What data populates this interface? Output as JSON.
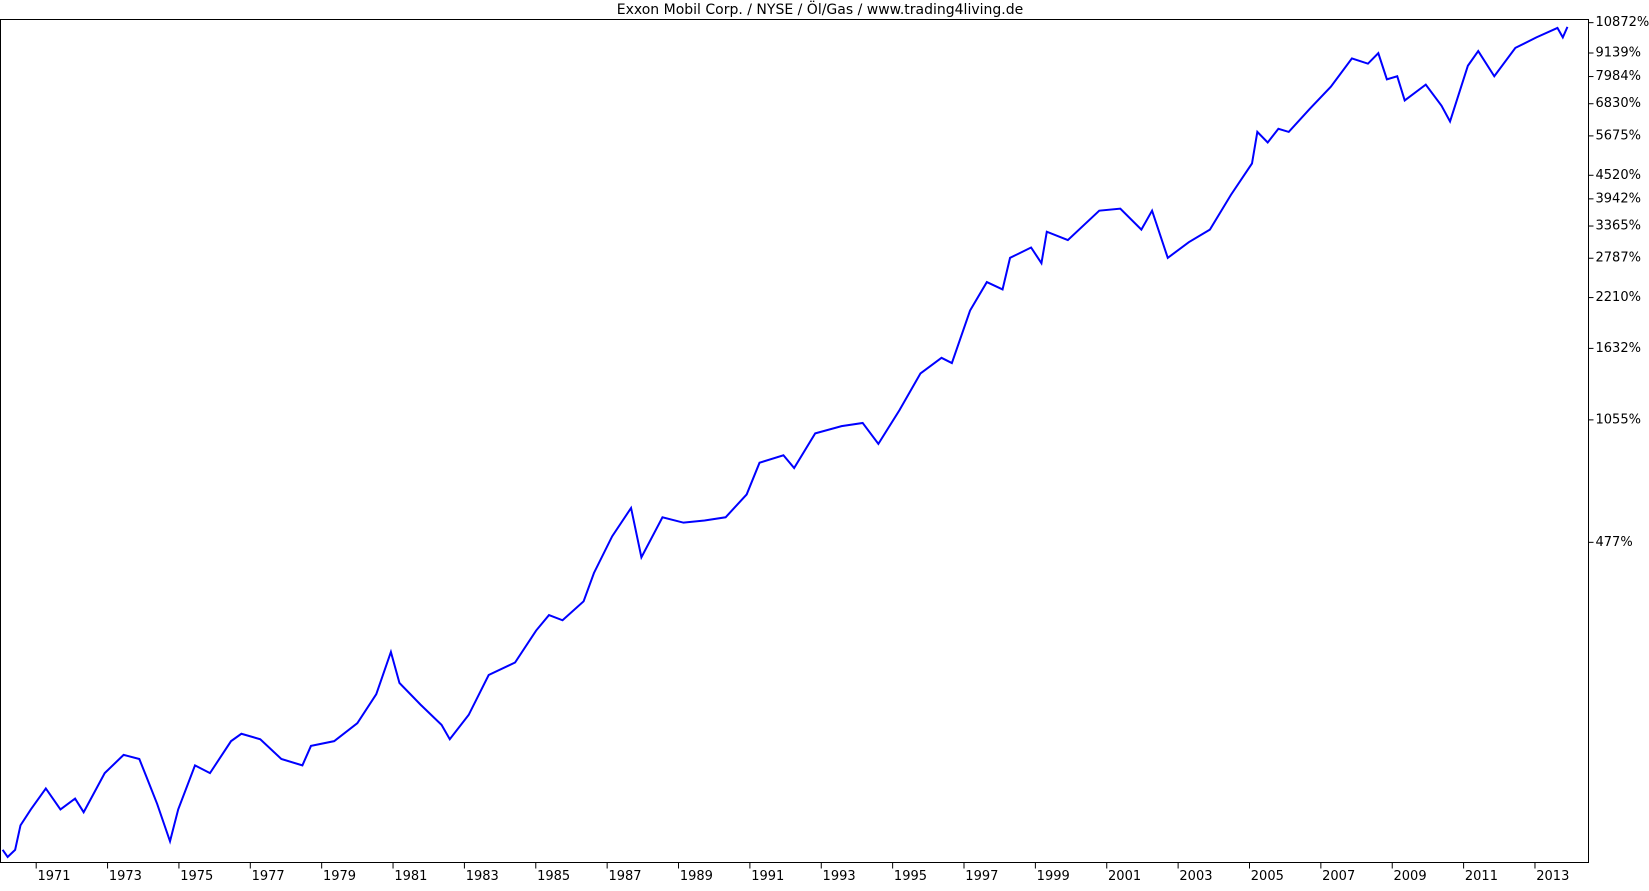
{
  "chart_data": {
    "type": "line",
    "title": "Exxon Mobil Corp. / NYSE / Öl/Gas / www.trading4living.de",
    "log_scale": true,
    "grid": false,
    "color": "#0000ff",
    "xlim": [
      1970,
      2014.5
    ],
    "xticks": [
      1971,
      1973,
      1975,
      1977,
      1979,
      1981,
      1983,
      1985,
      1987,
      1989,
      1991,
      1993,
      1995,
      1997,
      1999,
      2001,
      2003,
      2005,
      2007,
      2009,
      2011,
      2013
    ],
    "ylim": [
      -6,
      11070
    ],
    "yticks": [
      {
        "value": 477,
        "label": "477%"
      },
      {
        "value": 1055,
        "label": "1055%"
      },
      {
        "value": 1632,
        "label": "1632%"
      },
      {
        "value": 2210,
        "label": "2210%"
      },
      {
        "value": 2787,
        "label": "2787%"
      },
      {
        "value": 3365,
        "label": "3365%"
      },
      {
        "value": 3942,
        "label": "3942%"
      },
      {
        "value": 4520,
        "label": "4520%"
      },
      {
        "value": 5675,
        "label": "5675%"
      },
      {
        "value": 6830,
        "label": "6830%"
      },
      {
        "value": 7984,
        "label": "7984%"
      },
      {
        "value": 9139,
        "label": "9139%"
      },
      {
        "value": 10872,
        "label": "10872%"
      }
    ],
    "x": [
      1970.06,
      1970.2,
      1970.41,
      1970.56,
      1970.85,
      1971.27,
      1971.68,
      1972.09,
      1972.33,
      1972.92,
      1973.45,
      1973.89,
      1974.1,
      1974.39,
      1974.75,
      1974.98,
      1975.45,
      1975.87,
      1976.46,
      1976.75,
      1977.28,
      1977.87,
      1978.46,
      1978.7,
      1979.35,
      1980.0,
      1980.53,
      1980.94,
      1981.18,
      1981.77,
      1982.36,
      1982.59,
      1983.12,
      1983.68,
      1984.42,
      1985.01,
      1985.37,
      1985.75,
      1986.34,
      1986.63,
      1987.14,
      1987.67,
      1987.96,
      1988.55,
      1989.14,
      1989.73,
      1990.32,
      1990.91,
      1991.27,
      1991.94,
      1992.24,
      1992.83,
      1993.57,
      1994.16,
      1994.6,
      1995.19,
      1995.78,
      1996.37,
      1996.66,
      1997.17,
      1997.64,
      1998.08,
      1998.29,
      1998.88,
      1999.17,
      1999.32,
      1999.91,
      2000.79,
      2001.38,
      2001.97,
      2002.27,
      2002.71,
      2003.3,
      2003.89,
      2004.48,
      2005.07,
      2005.22,
      2005.51,
      2005.81,
      2006.1,
      2006.69,
      2007.28,
      2007.87,
      2008.32,
      2008.61,
      2008.85,
      2009.14,
      2009.35,
      2009.94,
      2010.38,
      2010.62,
      2011.12,
      2011.41,
      2011.86,
      2012.45,
      2013.04,
      2013.63,
      2013.78,
      2013.91
    ],
    "values": [
      1,
      -3,
      1,
      16,
      27,
      43,
      27,
      35,
      25,
      56,
      73,
      69,
      52,
      31,
      6,
      27,
      63,
      56,
      87,
      95,
      89,
      69,
      63,
      82,
      87,
      107,
      144,
      210,
      160,
      130,
      105,
      89,
      117,
      172,
      192,
      250,
      282,
      271,
      313,
      385,
      497,
      601,
      430,
      565,
      545,
      553,
      565,
      657,
      806,
      845,
      779,
      970,
      1015,
      1035,
      908,
      1120,
      1403,
      1542,
      1494,
      2047,
      2422,
      2319,
      2793,
      2968,
      2707,
      3255,
      3100,
      3680,
      3724,
      3295,
      3680,
      2793,
      3062,
      3295,
      4034,
      4839,
      5807,
      5464,
      5914,
      5807,
      6635,
      7531,
      8861,
      8598,
      9131,
      7857,
      7998,
      6961,
      7623,
      6756,
      6169,
      8495,
      9241,
      7998,
      9409,
      9994,
      10549,
      9994,
      10612
    ]
  }
}
